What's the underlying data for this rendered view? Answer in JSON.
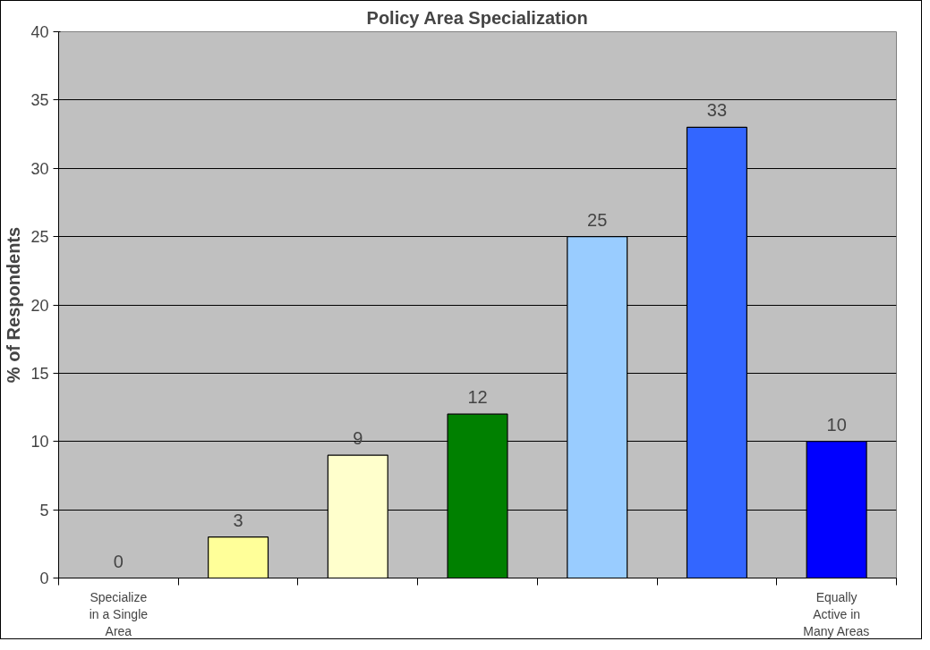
{
  "chart_data": {
    "type": "bar",
    "title": "Policy Area Specialization",
    "ylabel": "% of Respondents",
    "categories": [
      "Specialize in a Single Area",
      null,
      null,
      null,
      null,
      null,
      "Equally Active in Many Areas"
    ],
    "values": [
      0,
      3,
      9,
      12,
      25,
      33,
      10
    ],
    "colors": [
      null,
      "#ffff99",
      "#ffffcc",
      "#008000",
      "#99ccff",
      "#3366ff",
      "#0000ff"
    ],
    "ylim": [
      0,
      40
    ],
    "yticks": [
      0,
      5,
      10,
      15,
      20,
      25,
      30,
      35,
      40
    ],
    "grid": "y",
    "data_labels": true
  }
}
